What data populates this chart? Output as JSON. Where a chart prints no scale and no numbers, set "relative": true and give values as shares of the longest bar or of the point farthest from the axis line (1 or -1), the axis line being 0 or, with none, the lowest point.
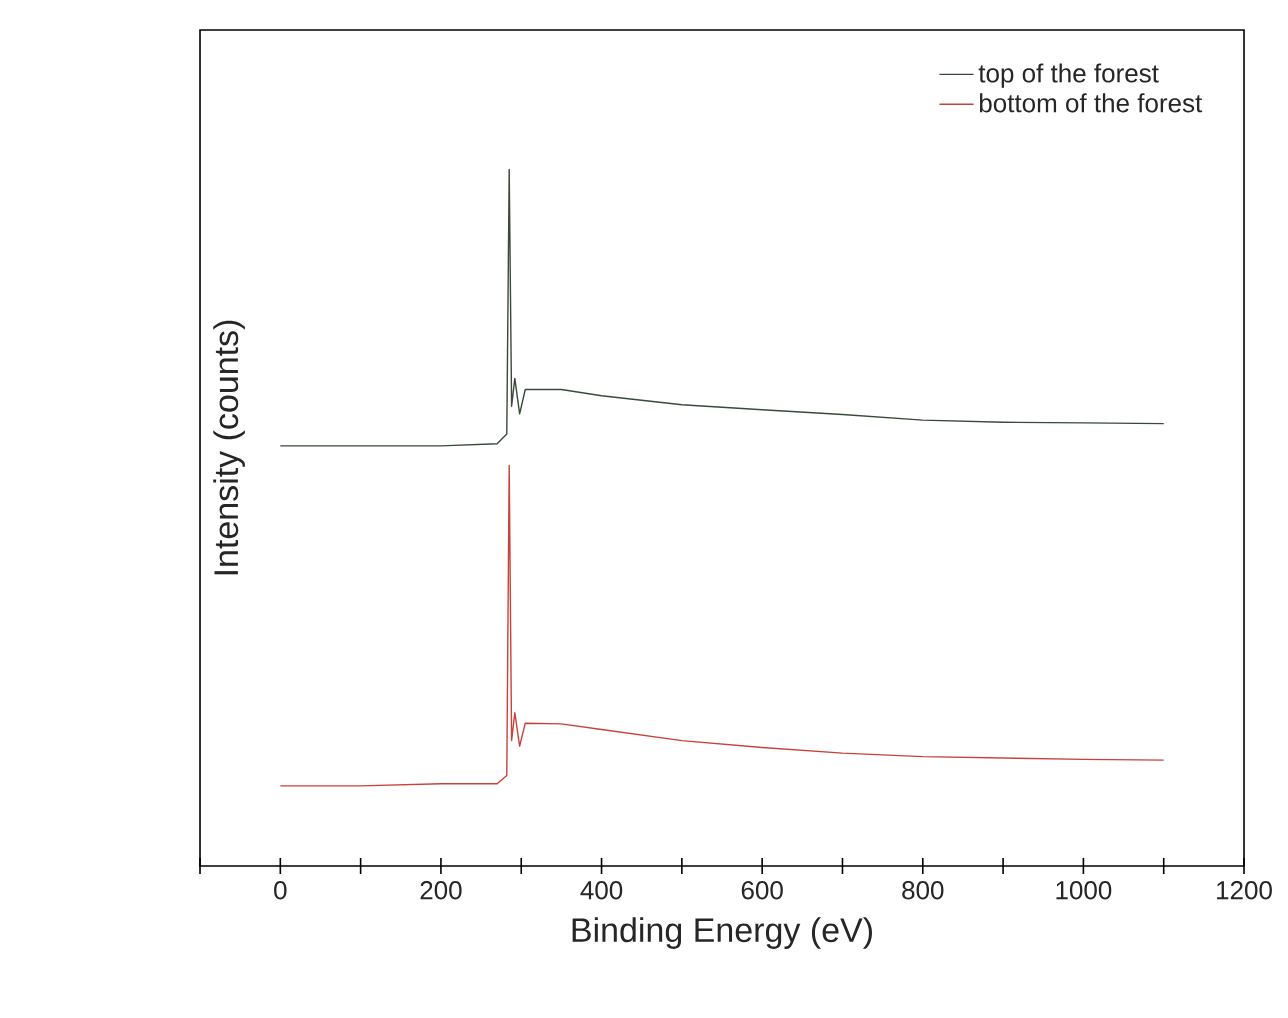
{
  "chart_data": {
    "type": "line",
    "relative": true,
    "xlabel": "Binding Energy (eV)",
    "ylabel": "Intensity (counts)",
    "xlim": [
      -100,
      1200
    ],
    "xticks": [
      {
        "value": -100,
        "label": null
      },
      0,
      {
        "value": 100,
        "label": null
      },
      200,
      {
        "value": 300,
        "label": null
      },
      400,
      {
        "value": 500,
        "label": null
      },
      600,
      {
        "value": 700,
        "label": null
      },
      800,
      {
        "value": 900,
        "label": null
      },
      1000,
      {
        "value": 1100,
        "label": null
      },
      1200
    ],
    "x": [
      0,
      100,
      200,
      270,
      282,
      285,
      288,
      292,
      298,
      305,
      350,
      400,
      500,
      600,
      700,
      800,
      900,
      1000,
      1100
    ],
    "legend": "top right",
    "marker": "none",
    "line_style": "solid",
    "series": [
      {
        "name": "top of the forest",
        "color": "#3a4a3a",
        "values": [
          0.603,
          0.603,
          0.603,
          0.606,
          0.62,
          1.0,
          0.66,
          0.7,
          0.649,
          0.684,
          0.684,
          0.675,
          0.662,
          0.655,
          0.648,
          0.64,
          0.637,
          0.636,
          0.635
        ]
      },
      {
        "name": "bottom of the forest",
        "color": "#c8423a",
        "values": [
          0.115,
          0.115,
          0.118,
          0.118,
          0.13,
          0.575,
          0.18,
          0.22,
          0.172,
          0.205,
          0.204,
          0.196,
          0.18,
          0.17,
          0.162,
          0.157,
          0.155,
          0.153,
          0.152
        ]
      }
    ]
  }
}
